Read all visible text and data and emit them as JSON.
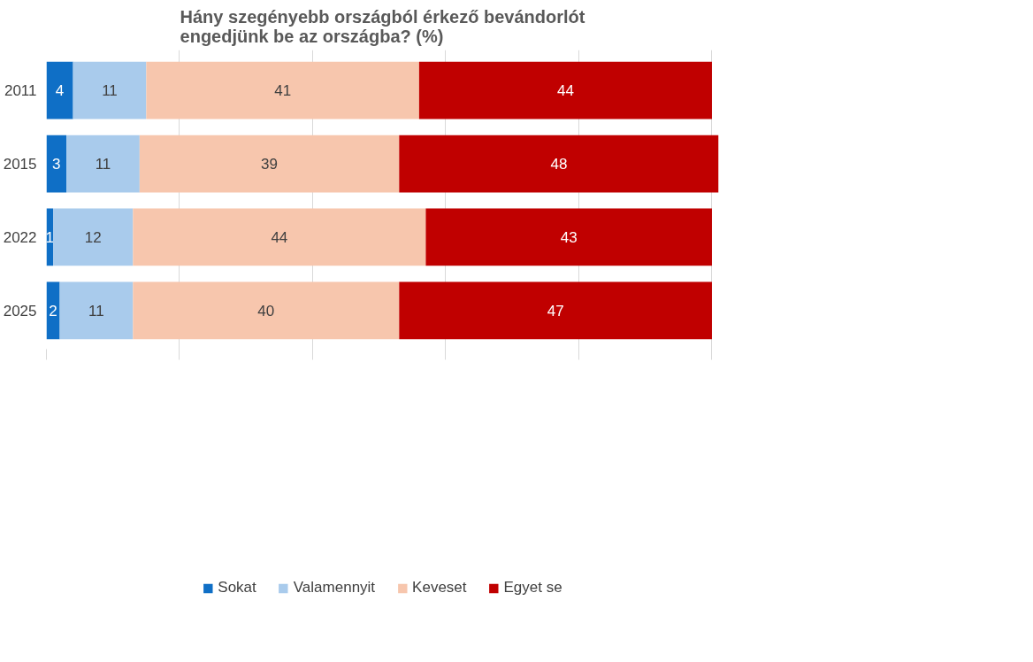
{
  "chart_data": {
    "type": "bar",
    "orientation": "horizontal",
    "stacked": true,
    "title": "Hány szegényebb országból érkező bevándorlót\nengedjünk be az országba? (%)",
    "categories": [
      "2011",
      "2015",
      "2022",
      "2025"
    ],
    "series": [
      {
        "name": "Sokat",
        "color": "#0f6fc6",
        "values": [
          4,
          3,
          1,
          2
        ]
      },
      {
        "name": "Valamennyit",
        "color": "#a9cbec",
        "values": [
          11,
          11,
          12,
          11
        ]
      },
      {
        "name": "Keveset",
        "color": "#f7c6ad",
        "values": [
          41,
          39,
          44,
          40
        ]
      },
      {
        "name": "Egyet se",
        "color": "#c00000",
        "values": [
          44,
          48,
          43,
          47
        ]
      }
    ],
    "xlim": [
      0,
      101
    ],
    "xticks": [
      {
        "value": 0,
        "label": null
      },
      {
        "value": 20,
        "label": null
      },
      {
        "value": 40,
        "label": null
      },
      {
        "value": 60,
        "label": null
      },
      {
        "value": 80,
        "label": null
      },
      {
        "value": 100,
        "label": null
      }
    ],
    "tick_labels": "y",
    "grid": "x",
    "legend": "bottom",
    "data_labels": true
  }
}
